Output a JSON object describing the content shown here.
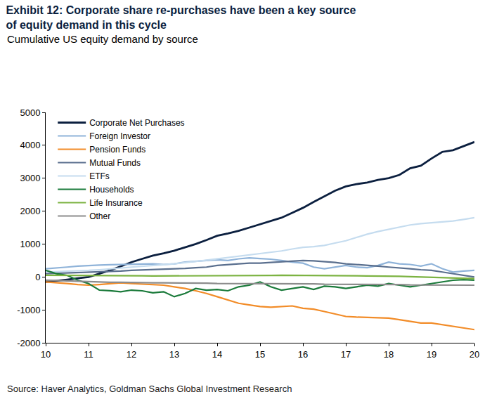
{
  "chart_data": {
    "type": "line",
    "title": "Exhibit 12: Corporate share re-purchases have been a key source of equity demand in this cycle",
    "subtitle": "Cumulative US equity demand by source",
    "source": "Source: Haver Analytics, Goldman Sachs Global Investment Research",
    "x": [
      10,
      10.25,
      10.5,
      10.75,
      11,
      11.25,
      11.5,
      11.75,
      12,
      12.25,
      12.5,
      12.75,
      13,
      13.25,
      13.5,
      13.75,
      14,
      14.25,
      14.5,
      14.75,
      15,
      15.25,
      15.5,
      15.75,
      16,
      16.25,
      16.5,
      16.75,
      17,
      17.25,
      17.5,
      17.75,
      18,
      18.25,
      18.5,
      18.75,
      19,
      19.25,
      19.5,
      19.75,
      20
    ],
    "series": [
      {
        "name": "Corporate Net Purchases",
        "color": "#0b1f3f",
        "values": [
          -150,
          -120,
          -80,
          -40,
          0,
          100,
          200,
          320,
          450,
          550,
          650,
          720,
          800,
          900,
          1000,
          1120,
          1250,
          1320,
          1400,
          1500,
          1600,
          1700,
          1800,
          1950,
          2100,
          2280,
          2450,
          2620,
          2750,
          2820,
          2870,
          2950,
          3000,
          3100,
          3300,
          3380,
          3600,
          3800,
          3850,
          3980,
          4100
        ]
      },
      {
        "name": "Foreign Investor",
        "color": "#8fb3d9",
        "values": [
          250,
          270,
          300,
          330,
          350,
          360,
          370,
          380,
          380,
          390,
          400,
          380,
          400,
          450,
          480,
          500,
          520,
          500,
          550,
          580,
          560,
          540,
          500,
          450,
          420,
          300,
          250,
          300,
          350,
          300,
          280,
          350,
          450,
          400,
          380,
          330,
          400,
          250,
          150,
          180,
          200
        ]
      },
      {
        "name": "Pension Funds",
        "color": "#f28c28",
        "values": [
          -150,
          -170,
          -200,
          -230,
          -250,
          -230,
          -200,
          -180,
          -200,
          -220,
          -230,
          -250,
          -300,
          -350,
          -420,
          -500,
          -600,
          -700,
          -800,
          -850,
          -900,
          -920,
          -900,
          -880,
          -950,
          -980,
          -1050,
          -1120,
          -1200,
          -1220,
          -1230,
          -1250,
          -1250,
          -1300,
          -1350,
          -1400,
          -1400,
          -1450,
          -1500,
          -1550,
          -1600
        ]
      },
      {
        "name": "Mutual Funds",
        "color": "#5a6f8e",
        "values": [
          100,
          110,
          120,
          130,
          150,
          160,
          170,
          180,
          200,
          210,
          220,
          230,
          240,
          260,
          280,
          300,
          350,
          380,
          400,
          420,
          420,
          440,
          460,
          480,
          500,
          490,
          470,
          440,
          400,
          380,
          350,
          330,
          300,
          280,
          250,
          220,
          200,
          150,
          100,
          50,
          0
        ]
      },
      {
        "name": "ETFs",
        "color": "#c5dcef",
        "values": [
          150,
          160,
          170,
          185,
          200,
          220,
          240,
          270,
          300,
          320,
          340,
          370,
          400,
          430,
          470,
          510,
          550,
          580,
          620,
          660,
          700,
          740,
          790,
          850,
          900,
          920,
          960,
          1030,
          1100,
          1200,
          1300,
          1380,
          1450,
          1520,
          1580,
          1620,
          1650,
          1680,
          1700,
          1750,
          1800
        ]
      },
      {
        "name": "Households",
        "color": "#1a7a3a",
        "values": [
          200,
          100,
          50,
          -100,
          -200,
          -400,
          -420,
          -450,
          -400,
          -420,
          -480,
          -450,
          -600,
          -500,
          -350,
          -400,
          -380,
          -420,
          -300,
          -250,
          -150,
          -300,
          -400,
          -350,
          -300,
          -380,
          -280,
          -300,
          -350,
          -300,
          -250,
          -280,
          -200,
          -250,
          -300,
          -250,
          -200,
          -150,
          -100,
          -80,
          -100
        ]
      },
      {
        "name": "Life Insurance",
        "color": "#7cb342",
        "values": [
          50,
          50,
          45,
          45,
          40,
          40,
          40,
          35,
          35,
          35,
          30,
          30,
          30,
          30,
          30,
          30,
          30,
          35,
          40,
          40,
          40,
          45,
          50,
          50,
          50,
          50,
          45,
          40,
          40,
          35,
          30,
          30,
          25,
          20,
          10,
          0,
          -10,
          -20,
          -30,
          -40,
          -50
        ]
      },
      {
        "name": "Other",
        "color": "#8c8c8c",
        "values": [
          -100,
          -110,
          -120,
          -130,
          -150,
          -150,
          -160,
          -160,
          -170,
          -170,
          -180,
          -180,
          -180,
          -190,
          -190,
          -190,
          -200,
          -200,
          -200,
          -200,
          -200,
          -200,
          -210,
          -210,
          -210,
          -210,
          -220,
          -220,
          -220,
          -220,
          -230,
          -230,
          -230,
          -230,
          -240,
          -240,
          -240,
          -240,
          -250,
          -250,
          -250
        ]
      }
    ],
    "xlim": [
      10,
      20
    ],
    "xticks": [
      10,
      11,
      12,
      13,
      14,
      15,
      16,
      17,
      18,
      19,
      20
    ],
    "ylim": [
      -2000,
      5000
    ],
    "yticks": [
      -2000,
      -1000,
      0,
      1000,
      2000,
      3000,
      4000,
      5000
    ],
    "grid": false,
    "legend": "upper left"
  }
}
